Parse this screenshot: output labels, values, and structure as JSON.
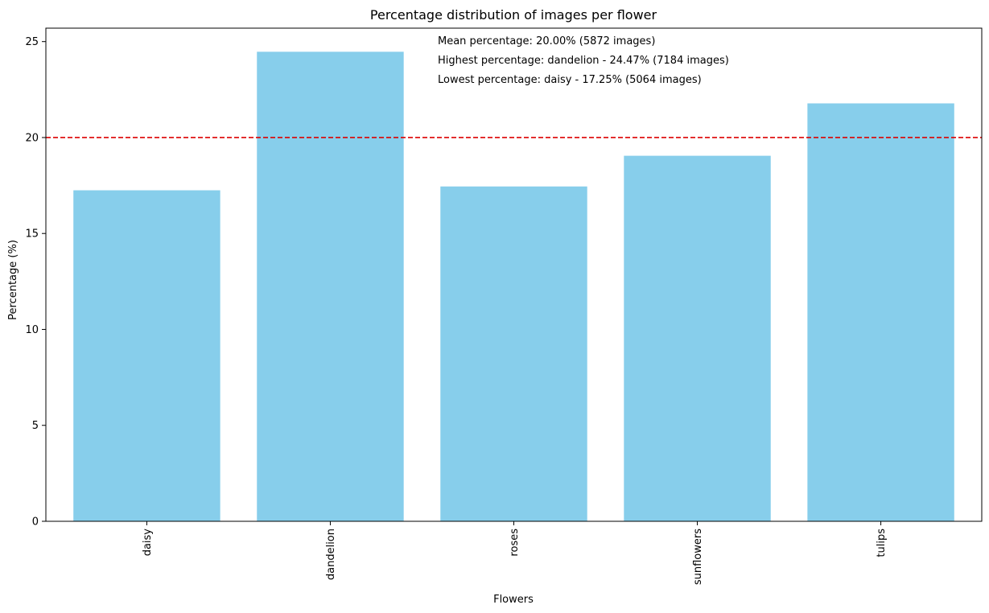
{
  "chart_data": {
    "type": "bar",
    "title": "Percentage distribution of images per flower",
    "xlabel": "Flowers",
    "ylabel": "Percentage (%)",
    "categories": [
      "daisy",
      "dandelion",
      "roses",
      "sunflowers",
      "tulips"
    ],
    "values": [
      17.25,
      24.47,
      17.45,
      19.05,
      21.78
    ],
    "ylim": [
      0,
      25.7
    ],
    "yticks": [
      0,
      5,
      10,
      15,
      20,
      25
    ],
    "bar_color": "#87ceeb",
    "mean_line": {
      "value": 20.0,
      "color": "#dd0000",
      "style": "dashed"
    },
    "annotations": [
      "Mean percentage: 20.00% (5872 images)",
      "Highest percentage: dandelion - 24.47% (7184 images)",
      "Lowest percentage: daisy - 17.25% (5064 images)"
    ],
    "grid": false,
    "legend": "none"
  }
}
